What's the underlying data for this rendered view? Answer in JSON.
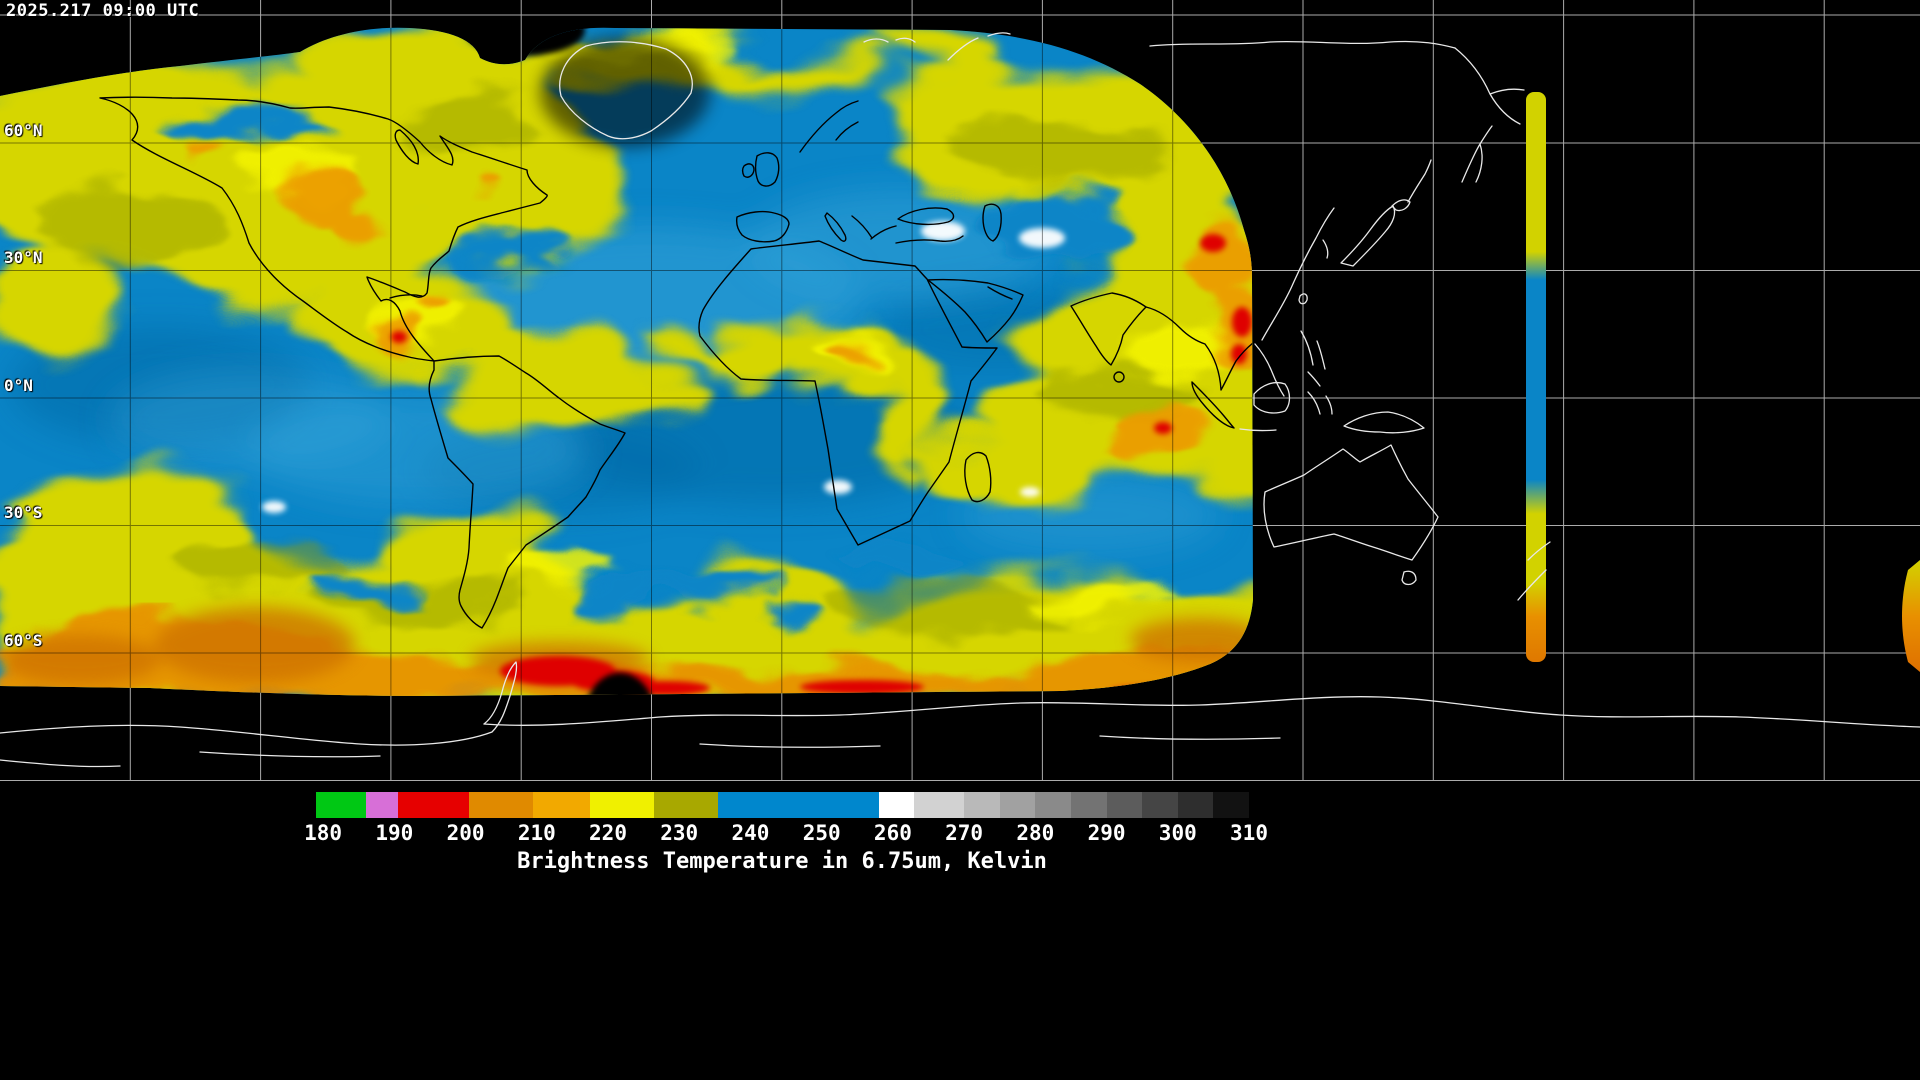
{
  "header": {
    "timestamp": "2025.217 09:00 UTC"
  },
  "map": {
    "latitude_labels": [
      "60°N",
      "30°N",
      "0°N",
      "30°S",
      "60°S"
    ]
  },
  "colorbar": {
    "title": "Brightness Temperature in 6.75um, Kelvin",
    "unit": "Kelvin",
    "min": 179,
    "max": 310,
    "ticks": [
      180,
      190,
      200,
      210,
      220,
      230,
      240,
      250,
      260,
      270,
      280,
      290,
      300,
      310
    ],
    "segments": [
      {
        "from": 179,
        "to": 186,
        "color": "#00c814"
      },
      {
        "from": 186,
        "to": 190.5,
        "color": "#d76fd7"
      },
      {
        "from": 190.5,
        "to": 200.5,
        "color": "#e60000"
      },
      {
        "from": 200.5,
        "to": 209.5,
        "color": "#e08a00"
      },
      {
        "from": 209.5,
        "to": 217.5,
        "color": "#f2a900"
      },
      {
        "from": 217.5,
        "to": 226.5,
        "color": "#f0f000"
      },
      {
        "from": 226.5,
        "to": 235.5,
        "color": "#a8a800"
      },
      {
        "from": 235.5,
        "to": 258,
        "color": "#0087cd"
      },
      {
        "from": 258,
        "to": 263,
        "color": "#ffffff"
      },
      {
        "from": 263,
        "to": 270,
        "color": "#d2d2d2"
      },
      {
        "from": 270,
        "to": 275,
        "color": "#b9b9b9"
      },
      {
        "from": 275,
        "to": 280,
        "color": "#a1a1a1"
      },
      {
        "from": 280,
        "to": 285,
        "color": "#8a8a8a"
      },
      {
        "from": 285,
        "to": 290,
        "color": "#737373"
      },
      {
        "from": 290,
        "to": 295,
        "color": "#5c5c5c"
      },
      {
        "from": 295,
        "to": 300,
        "color": "#454545"
      },
      {
        "from": 300,
        "to": 305,
        "color": "#2e2e2e"
      },
      {
        "from": 305,
        "to": 310,
        "color": "#121212"
      }
    ]
  }
}
